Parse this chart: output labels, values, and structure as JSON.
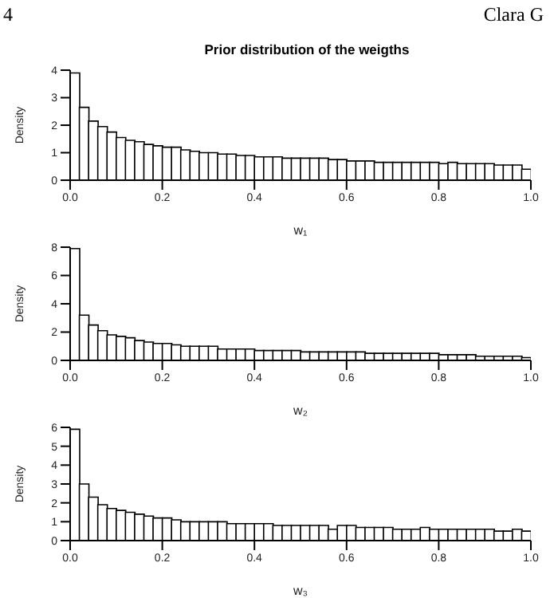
{
  "chart_data": [
    {
      "type": "histogram",
      "title": "Prior distribution of the weigths",
      "xlabel": "w₁",
      "ylabel": "Density",
      "annotations": [
        "4",
        "Clara G"
      ],
      "bins": [
        0,
        0.02,
        0.04,
        0.06,
        0.08,
        0.1,
        0.12,
        0.14,
        0.16,
        0.18,
        0.2,
        0.22,
        0.24,
        0.26,
        0.28,
        0.3,
        0.32,
        0.34,
        0.36,
        0.38,
        0.4,
        0.42,
        0.44,
        0.46,
        0.48,
        0.5,
        0.52,
        0.54,
        0.56,
        0.58,
        0.6,
        0.62,
        0.64,
        0.66,
        0.68,
        0.7,
        0.72,
        0.74,
        0.76,
        0.78,
        0.8,
        0.82,
        0.84,
        0.86,
        0.88,
        0.9,
        0.92,
        0.94,
        0.96,
        0.98,
        1
      ],
      "values": [
        3.9,
        2.65,
        2.15,
        1.95,
        1.75,
        1.55,
        1.45,
        1.4,
        1.3,
        1.25,
        1.2,
        1.2,
        1.1,
        1.05,
        1.0,
        1.0,
        0.95,
        0.95,
        0.9,
        0.9,
        0.85,
        0.85,
        0.85,
        0.8,
        0.8,
        0.8,
        0.8,
        0.8,
        0.75,
        0.75,
        0.7,
        0.7,
        0.7,
        0.65,
        0.65,
        0.65,
        0.65,
        0.65,
        0.65,
        0.65,
        0.6,
        0.65,
        0.6,
        0.6,
        0.6,
        0.6,
        0.55,
        0.55,
        0.55,
        0.4
      ],
      "color": "#ffffff",
      "xlim": [
        0,
        1
      ],
      "xticks": [
        {
          "value": 0,
          "label": "0.0"
        },
        {
          "value": 0.2,
          "label": "0.2"
        },
        {
          "value": 0.4,
          "label": "0.4"
        },
        {
          "value": 0.6,
          "label": "0.6"
        },
        {
          "value": 0.8,
          "label": "0.8"
        },
        {
          "value": 1,
          "label": "1.0"
        }
      ],
      "ylim": [
        0,
        4
      ],
      "yticks": [
        0,
        1,
        2,
        3,
        4
      ],
      "grid": false,
      "legend": false
    },
    {
      "type": "histogram",
      "xlabel": "w₂",
      "ylabel": "Density",
      "bins": [
        0,
        0.02,
        0.04,
        0.06,
        0.08,
        0.1,
        0.12,
        0.14,
        0.16,
        0.18,
        0.2,
        0.22,
        0.24,
        0.26,
        0.28,
        0.3,
        0.32,
        0.34,
        0.36,
        0.38,
        0.4,
        0.42,
        0.44,
        0.46,
        0.48,
        0.5,
        0.52,
        0.54,
        0.56,
        0.58,
        0.6,
        0.62,
        0.64,
        0.66,
        0.68,
        0.7,
        0.72,
        0.74,
        0.76,
        0.78,
        0.8,
        0.82,
        0.84,
        0.86,
        0.88,
        0.9,
        0.92,
        0.94,
        0.96,
        0.98,
        1
      ],
      "values": [
        7.9,
        3.2,
        2.5,
        2.1,
        1.8,
        1.7,
        1.6,
        1.4,
        1.3,
        1.2,
        1.2,
        1.1,
        1.0,
        1.0,
        1.0,
        1.0,
        0.8,
        0.8,
        0.8,
        0.8,
        0.7,
        0.7,
        0.7,
        0.7,
        0.7,
        0.6,
        0.6,
        0.6,
        0.6,
        0.6,
        0.6,
        0.6,
        0.5,
        0.5,
        0.5,
        0.5,
        0.5,
        0.5,
        0.5,
        0.5,
        0.4,
        0.4,
        0.4,
        0.4,
        0.3,
        0.3,
        0.3,
        0.3,
        0.3,
        0.2
      ],
      "color": "#ffffff",
      "xlim": [
        0,
        1
      ],
      "xticks": [
        {
          "value": 0,
          "label": "0.0"
        },
        {
          "value": 0.2,
          "label": "0.2"
        },
        {
          "value": 0.4,
          "label": "0.4"
        },
        {
          "value": 0.6,
          "label": "0.6"
        },
        {
          "value": 0.8,
          "label": "0.8"
        },
        {
          "value": 1,
          "label": "1.0"
        }
      ],
      "ylim": [
        0,
        8
      ],
      "yticks": [
        0,
        2,
        4,
        6,
        8
      ],
      "grid": false,
      "legend": false
    },
    {
      "type": "histogram",
      "xlabel": "w₃",
      "ylabel": "Density",
      "bins": [
        0,
        0.02,
        0.04,
        0.06,
        0.08,
        0.1,
        0.12,
        0.14,
        0.16,
        0.18,
        0.2,
        0.22,
        0.24,
        0.26,
        0.28,
        0.3,
        0.32,
        0.34,
        0.36,
        0.38,
        0.4,
        0.42,
        0.44,
        0.46,
        0.48,
        0.5,
        0.52,
        0.54,
        0.56,
        0.58,
        0.6,
        0.62,
        0.64,
        0.66,
        0.68,
        0.7,
        0.72,
        0.74,
        0.76,
        0.78,
        0.8,
        0.82,
        0.84,
        0.86,
        0.88,
        0.9,
        0.92,
        0.94,
        0.96,
        0.98,
        1
      ],
      "values": [
        5.9,
        3.0,
        2.3,
        1.9,
        1.7,
        1.6,
        1.5,
        1.4,
        1.3,
        1.2,
        1.2,
        1.1,
        1.0,
        1.0,
        1.0,
        1.0,
        1.0,
        0.9,
        0.9,
        0.9,
        0.9,
        0.9,
        0.8,
        0.8,
        0.8,
        0.8,
        0.8,
        0.8,
        0.6,
        0.8,
        0.8,
        0.7,
        0.7,
        0.7,
        0.7,
        0.6,
        0.6,
        0.6,
        0.7,
        0.6,
        0.6,
        0.6,
        0.6,
        0.6,
        0.6,
        0.6,
        0.5,
        0.5,
        0.6,
        0.5
      ],
      "color": "#ffffff",
      "xlim": [
        0,
        1
      ],
      "xticks": [
        {
          "value": 0,
          "label": "0.0"
        },
        {
          "value": 0.2,
          "label": "0.2"
        },
        {
          "value": 0.4,
          "label": "0.4"
        },
        {
          "value": 0.6,
          "label": "0.6"
        },
        {
          "value": 0.8,
          "label": "0.8"
        },
        {
          "value": 1,
          "label": "1.0"
        }
      ],
      "ylim": [
        0,
        6
      ],
      "yticks": [
        0,
        1,
        2,
        3,
        4,
        5,
        6
      ],
      "grid": false,
      "legend": false
    }
  ]
}
